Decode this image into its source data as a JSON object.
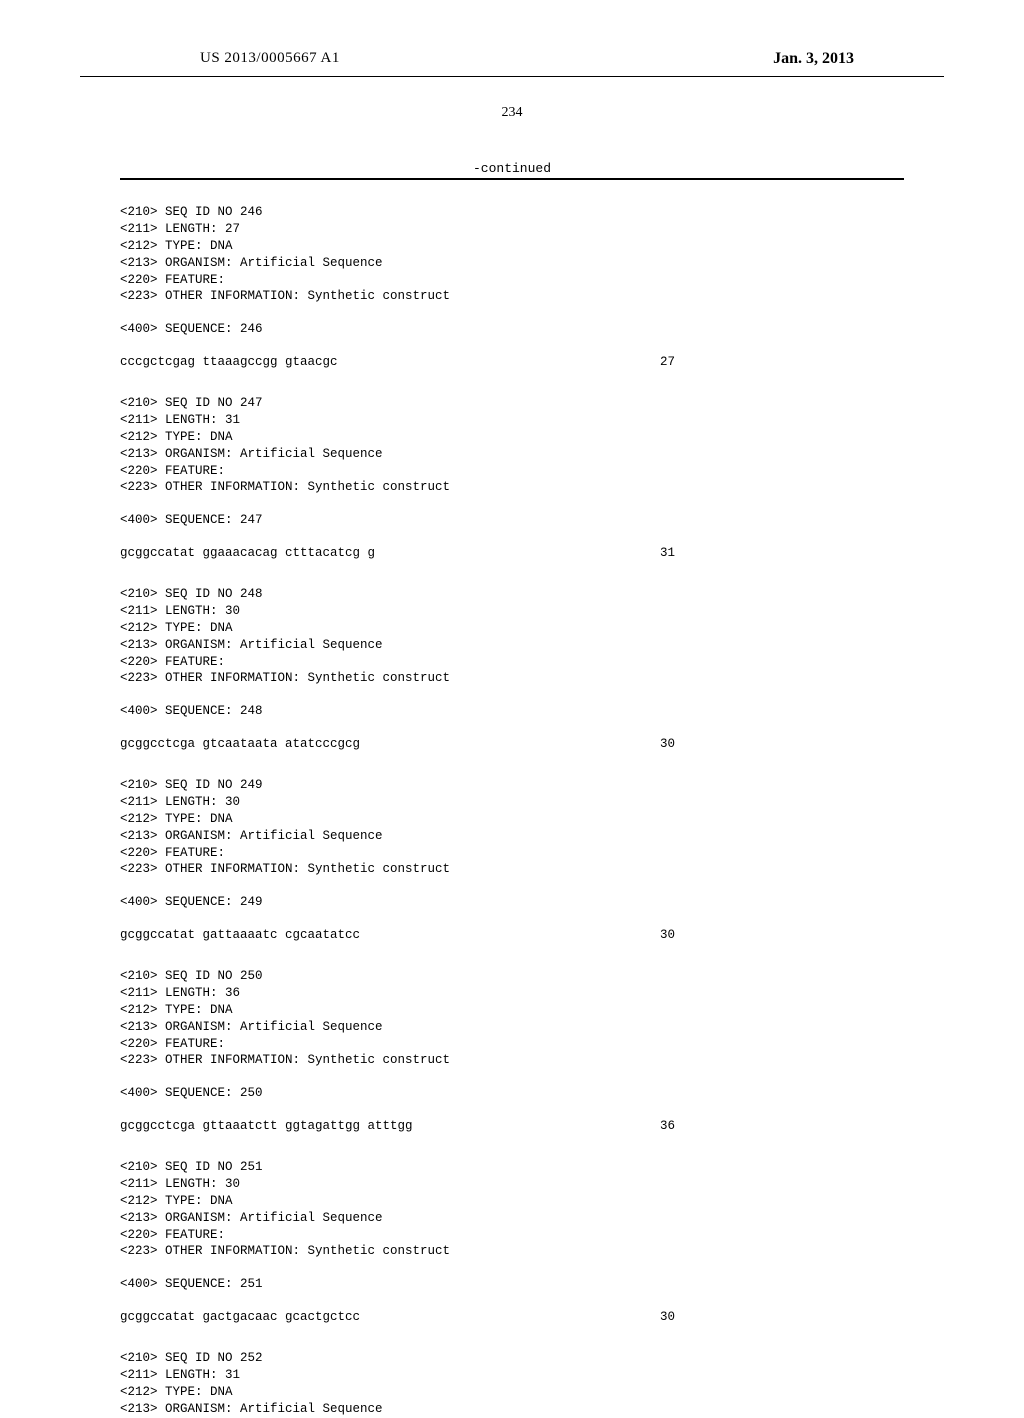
{
  "header": {
    "pub_number": "US 2013/0005667 A1",
    "pub_date": "Jan. 3, 2013"
  },
  "page_number": "234",
  "continued_label": "-continued",
  "sequences": [
    {
      "id_line": "<210> SEQ ID NO 246",
      "length_line": "<211> LENGTH: 27",
      "type_line": "<212> TYPE: DNA",
      "organism_line": "<213> ORGANISM: Artificial Sequence",
      "feature_line": "<220> FEATURE:",
      "other_info_line": "<223> OTHER INFORMATION: Synthetic construct",
      "seq_label": "<400> SEQUENCE: 246",
      "seq_data": "cccgctcgag ttaaagccgg gtaacgc",
      "seq_len": "27"
    },
    {
      "id_line": "<210> SEQ ID NO 247",
      "length_line": "<211> LENGTH: 31",
      "type_line": "<212> TYPE: DNA",
      "organism_line": "<213> ORGANISM: Artificial Sequence",
      "feature_line": "<220> FEATURE:",
      "other_info_line": "<223> OTHER INFORMATION: Synthetic construct",
      "seq_label": "<400> SEQUENCE: 247",
      "seq_data": "gcggccatat ggaaacacag ctttacatcg g",
      "seq_len": "31"
    },
    {
      "id_line": "<210> SEQ ID NO 248",
      "length_line": "<211> LENGTH: 30",
      "type_line": "<212> TYPE: DNA",
      "organism_line": "<213> ORGANISM: Artificial Sequence",
      "feature_line": "<220> FEATURE:",
      "other_info_line": "<223> OTHER INFORMATION: Synthetic construct",
      "seq_label": "<400> SEQUENCE: 248",
      "seq_data": "gcggcctcga gtcaataata atatcccgcg",
      "seq_len": "30"
    },
    {
      "id_line": "<210> SEQ ID NO 249",
      "length_line": "<211> LENGTH: 30",
      "type_line": "<212> TYPE: DNA",
      "organism_line": "<213> ORGANISM: Artificial Sequence",
      "feature_line": "<220> FEATURE:",
      "other_info_line": "<223> OTHER INFORMATION: Synthetic construct",
      "seq_label": "<400> SEQUENCE: 249",
      "seq_data": "gcggccatat gattaaaatc cgcaatatcc",
      "seq_len": "30"
    },
    {
      "id_line": "<210> SEQ ID NO 250",
      "length_line": "<211> LENGTH: 36",
      "type_line": "<212> TYPE: DNA",
      "organism_line": "<213> ORGANISM: Artificial Sequence",
      "feature_line": "<220> FEATURE:",
      "other_info_line": "<223> OTHER INFORMATION: Synthetic construct",
      "seq_label": "<400> SEQUENCE: 250",
      "seq_data": "gcggcctcga gttaaatctt ggtagattgg atttgg",
      "seq_len": "36"
    },
    {
      "id_line": "<210> SEQ ID NO 251",
      "length_line": "<211> LENGTH: 30",
      "type_line": "<212> TYPE: DNA",
      "organism_line": "<213> ORGANISM: Artificial Sequence",
      "feature_line": "<220> FEATURE:",
      "other_info_line": "<223> OTHER INFORMATION: Synthetic construct",
      "seq_label": "<400> SEQUENCE: 251",
      "seq_data": "gcggccatat gactgacaac gcactgctcc",
      "seq_len": "30"
    }
  ],
  "partial_sequence": {
    "id_line": "<210> SEQ ID NO 252",
    "length_line": "<211> LENGTH: 31",
    "type_line": "<212> TYPE: DNA",
    "organism_line": "<213> ORGANISM: Artificial Sequence"
  }
}
